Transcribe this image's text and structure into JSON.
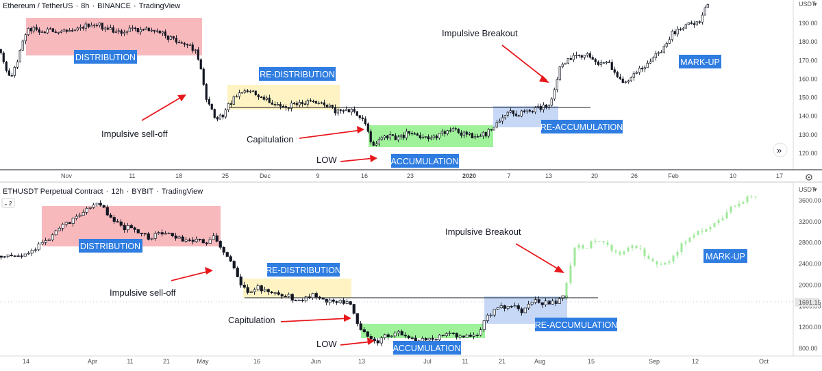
{
  "colors": {
    "distribution": "#f7b1b6",
    "redistribution": "#fff3c4",
    "accumulation": "#9ff29a",
    "reaccumulation": "#c6d8f5",
    "label_bg": "#2f7de1",
    "arrow": "#e8171c",
    "candle": "#131722",
    "markup_projection": "#9fe89a",
    "grid_line": "#131722"
  },
  "chart_data": [
    {
      "type": "candlestick",
      "header": {
        "symbol": "Ethereum / TetherUS",
        "interval": "8h",
        "exchange": "BINANCE",
        "platform": "TradingView"
      },
      "currency_label": "USDT",
      "y_ticks": [
        120,
        130,
        140,
        150,
        160,
        170,
        180,
        190
      ],
      "y_tick_labels": [
        "120.00",
        "130.00",
        "140.00",
        "150.00",
        "160.00",
        "170.00",
        "180.00",
        "190.00"
      ],
      "ylim": [
        113,
        200
      ],
      "x_tick_labels": [
        "Nov",
        "11",
        "18",
        "25",
        "Dec",
        "9",
        "16",
        "23",
        "2020",
        "7",
        "13",
        "20",
        "26",
        "Feb",
        "10",
        "17"
      ],
      "horizontal_level": 145,
      "price_path": [
        [
          0,
          176
        ],
        [
          10,
          168
        ],
        [
          18,
          158
        ],
        [
          30,
          172
        ],
        [
          38,
          184
        ],
        [
          45,
          187
        ],
        [
          60,
          186
        ],
        [
          80,
          186
        ],
        [
          100,
          187
        ],
        [
          120,
          188
        ],
        [
          140,
          190
        ],
        [
          160,
          187
        ],
        [
          180,
          186
        ],
        [
          200,
          187
        ],
        [
          220,
          186
        ],
        [
          240,
          184
        ],
        [
          260,
          181
        ],
        [
          275,
          178
        ],
        [
          290,
          175
        ],
        [
          296,
          165
        ],
        [
          302,
          152
        ],
        [
          310,
          145
        ],
        [
          318,
          137
        ],
        [
          324,
          140
        ],
        [
          330,
          140
        ],
        [
          336,
          146
        ],
        [
          350,
          152
        ],
        [
          365,
          154
        ],
        [
          380,
          151
        ],
        [
          400,
          147
        ],
        [
          420,
          145
        ],
        [
          440,
          147
        ],
        [
          460,
          147
        ],
        [
          480,
          146
        ],
        [
          495,
          142
        ],
        [
          510,
          144
        ],
        [
          525,
          141
        ],
        [
          536,
          137
        ],
        [
          541,
          130
        ],
        [
          546,
          126
        ],
        [
          550,
          123
        ],
        [
          556,
          127
        ],
        [
          565,
          130
        ],
        [
          580,
          128
        ],
        [
          600,
          131
        ],
        [
          615,
          129
        ],
        [
          630,
          127
        ],
        [
          650,
          131
        ],
        [
          665,
          132
        ],
        [
          680,
          130
        ],
        [
          700,
          129
        ],
        [
          715,
          131
        ],
        [
          730,
          137
        ],
        [
          745,
          142
        ],
        [
          760,
          141
        ],
        [
          775,
          143
        ],
        [
          790,
          144
        ],
        [
          805,
          146
        ],
        [
          812,
          155
        ],
        [
          820,
          166
        ],
        [
          830,
          171
        ],
        [
          845,
          172
        ],
        [
          860,
          174
        ],
        [
          875,
          167
        ],
        [
          890,
          169
        ],
        [
          905,
          161
        ],
        [
          915,
          158
        ],
        [
          925,
          161
        ],
        [
          940,
          166
        ],
        [
          955,
          171
        ],
        [
          970,
          176
        ],
        [
          985,
          185
        ],
        [
          1000,
          188
        ],
        [
          1015,
          190
        ],
        [
          1028,
          193
        ],
        [
          1033,
          200
        ]
      ],
      "zones": [
        {
          "label": "DISTRIBUTION",
          "color": "distribution",
          "x_range": [
            "Nov",
            "25"
          ],
          "price_range": [
            174,
            193
          ]
        },
        {
          "label": "RE-DISTRIBUTION",
          "color": "redistribution",
          "x_range": [
            "25",
            "16"
          ],
          "price_range": [
            144,
            157
          ]
        },
        {
          "label": "ACCUMULATION",
          "color": "accumulation",
          "x_range": [
            "16",
            "2020"
          ],
          "price_range": [
            124,
            138
          ]
        },
        {
          "label": "RE-ACCUMULATION",
          "color": "reaccumulation",
          "x_range": [
            "2020",
            "13"
          ],
          "price_range": [
            137,
            148
          ]
        }
      ],
      "annotations": [
        "Impulsive sell-off",
        "Capitulation",
        "LOW",
        "Impulsive Breakout",
        "MARK-UP"
      ]
    },
    {
      "type": "candlestick",
      "header": {
        "symbol": "ETHUSDT Perpetual Contract",
        "interval": "12h",
        "exchange": "BYBIT",
        "platform": "TradingView"
      },
      "currency_label": "USDT",
      "collapsed_indicator_count": "2",
      "y_ticks": [
        800,
        1200,
        1600,
        2000,
        2400,
        2800,
        3200,
        3600
      ],
      "y_tick_labels": [
        "800.00",
        "1200.00",
        "1600.00",
        "2000.00",
        "2400.00",
        "2800.00",
        "3200.00",
        "3600.00"
      ],
      "ylim": [
        700,
        3750
      ],
      "x_tick_labels": [
        "14",
        "Apr",
        "11",
        "21",
        "May",
        "16",
        "Jun",
        "13",
        "Jul",
        "11",
        "21",
        "Aug",
        "15",
        "Sep",
        "12",
        "Oct"
      ],
      "horizontal_level": 1691.15,
      "last_price_label": "1691.15",
      "price_path": [
        [
          0,
          2550
        ],
        [
          20,
          2580
        ],
        [
          40,
          2560
        ],
        [
          55,
          2700
        ],
        [
          70,
          2850
        ],
        [
          90,
          3050
        ],
        [
          110,
          3250
        ],
        [
          130,
          3400
        ],
        [
          150,
          3550
        ],
        [
          160,
          3300
        ],
        [
          180,
          3100
        ],
        [
          200,
          3050
        ],
        [
          220,
          2900
        ],
        [
          240,
          3000
        ],
        [
          260,
          2900
        ],
        [
          280,
          2850
        ],
        [
          300,
          2800
        ],
        [
          318,
          2900
        ],
        [
          325,
          2750
        ],
        [
          335,
          2500
        ],
        [
          345,
          2300
        ],
        [
          355,
          2050
        ],
        [
          365,
          1900
        ],
        [
          380,
          1950
        ],
        [
          400,
          1900
        ],
        [
          420,
          1800
        ],
        [
          440,
          1700
        ],
        [
          460,
          1800
        ],
        [
          480,
          1700
        ],
        [
          500,
          1680
        ],
        [
          512,
          1650
        ],
        [
          520,
          1500
        ],
        [
          528,
          1200
        ],
        [
          536,
          1100
        ],
        [
          545,
          1000
        ],
        [
          556,
          950
        ],
        [
          565,
          1050
        ],
        [
          580,
          1100
        ],
        [
          600,
          1000
        ],
        [
          620,
          950
        ],
        [
          640,
          1000
        ],
        [
          660,
          1050
        ],
        [
          680,
          1000
        ],
        [
          695,
          1000
        ],
        [
          705,
          1200
        ],
        [
          715,
          1450
        ],
        [
          730,
          1550
        ],
        [
          750,
          1600
        ],
        [
          765,
          1500
        ],
        [
          780,
          1700
        ],
        [
          800,
          1650
        ],
        [
          815,
          1700
        ],
        [
          825,
          1750
        ]
      ],
      "projection_path": [
        [
          825,
          1750
        ],
        [
          835,
          2300
        ],
        [
          845,
          2800
        ],
        [
          860,
          2700
        ],
        [
          875,
          2900
        ],
        [
          890,
          2750
        ],
        [
          905,
          2600
        ],
        [
          920,
          2700
        ],
        [
          935,
          2750
        ],
        [
          950,
          2500
        ],
        [
          965,
          2350
        ],
        [
          980,
          2400
        ],
        [
          995,
          2700
        ],
        [
          1010,
          2900
        ],
        [
          1025,
          3000
        ],
        [
          1040,
          3100
        ],
        [
          1055,
          3200
        ],
        [
          1070,
          3450
        ],
        [
          1085,
          3600
        ],
        [
          1105,
          3700
        ]
      ],
      "zones": [
        {
          "label": "DISTRIBUTION",
          "color": "distribution",
          "x_range": [
            "Apr",
            "May"
          ],
          "price_range": [
            2700,
            3400
          ]
        },
        {
          "label": "RE-DISTRIBUTION",
          "color": "redistribution",
          "x_range": [
            "May",
            "13"
          ],
          "price_range": [
            1700,
            2150
          ]
        },
        {
          "label": "ACCUMULATION",
          "color": "accumulation",
          "x_range": [
            "13",
            "21"
          ],
          "price_range": [
            1000,
            1250
          ]
        },
        {
          "label": "RE-ACCUMULATION",
          "color": "reaccumulation",
          "x_range": [
            "21",
            "Aug"
          ],
          "price_range": [
            1350,
            1750
          ]
        }
      ],
      "annotations": [
        "Impulsive sell-off",
        "Capitulation",
        "LOW",
        "Impulsive Breakout",
        "MARK-UP"
      ]
    }
  ]
}
